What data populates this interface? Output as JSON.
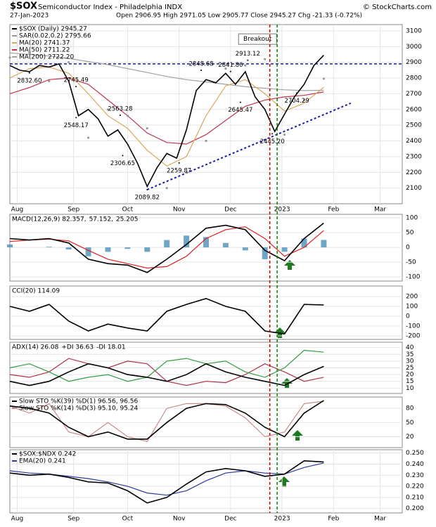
{
  "header": {
    "symbol": "$SOX",
    "name": "Semiconductor Index - Philadelphia INDX",
    "date": "27-Jan-2023",
    "ohlc": "Open 2906.95  High 2971.05  Low 2905.77  Close 2945.27  Chg -21.33 (-0.72%)",
    "source": "© StockCharts.com"
  },
  "chart_data": [
    {
      "type": "line",
      "legend_layout": "stacked",
      "xlim": [
        0,
        160
      ],
      "ylim": [
        2000,
        3140
      ],
      "xticks": [
        {
          "value": 3,
          "label": "Aug"
        },
        {
          "value": 26,
          "label": "Sep"
        },
        {
          "value": 48,
          "label": "Oct"
        },
        {
          "value": 69,
          "label": "Nov"
        },
        {
          "value": 90,
          "label": "Dec"
        },
        {
          "value": 111,
          "label": "2023"
        },
        {
          "value": 132,
          "label": "Feb"
        },
        {
          "value": 151,
          "label": "Mar"
        }
      ],
      "yticks": [
        2100,
        2200,
        2300,
        2400,
        2500,
        2600,
        2700,
        2800,
        2900,
        3000,
        3100
      ],
      "grid": true,
      "series": [
        {
          "name": "$SOX (Daily) 2945.27",
          "color": "#000000",
          "x": [
            0,
            4,
            8,
            12,
            16,
            20,
            24,
            28,
            32,
            36,
            40,
            44,
            48,
            52,
            56,
            60,
            64,
            68,
            72,
            76,
            80,
            84,
            88,
            92,
            96,
            100,
            104,
            108,
            112,
            116,
            120,
            124,
            128
          ],
          "values": [
            2880,
            2850,
            2840,
            2880,
            2870,
            2890,
            2780,
            2560,
            2600,
            2540,
            2430,
            2470,
            2380,
            2260,
            2110,
            2230,
            2320,
            2290,
            2470,
            2720,
            2790,
            2770,
            2830,
            2760,
            2840,
            2680,
            2600,
            2460,
            2570,
            2680,
            2760,
            2880,
            2945.27
          ]
        },
        {
          "name": "SAR(0.02,0.2) 2795.66",
          "color": "#999999",
          "kind": "dots",
          "x": [
            0,
            8,
            16,
            24,
            32,
            40,
            48,
            56,
            64,
            72,
            80,
            88,
            96,
            104,
            112,
            120,
            128
          ],
          "values": [
            2930,
            2960,
            2780,
            2900,
            2420,
            2600,
            2560,
            2480,
            2100,
            2200,
            2400,
            2860,
            2880,
            2920,
            2440,
            2660,
            2795.66
          ]
        },
        {
          "name": "MA(20) 2741.37",
          "color": "#d9a95b",
          "x": [
            0,
            8,
            16,
            24,
            32,
            40,
            48,
            56,
            64,
            72,
            80,
            88,
            96,
            104,
            112,
            120,
            128
          ],
          "values": [
            2800,
            2860,
            2870,
            2830,
            2700,
            2560,
            2480,
            2340,
            2240,
            2300,
            2560,
            2750,
            2790,
            2700,
            2590,
            2640,
            2741.37
          ]
        },
        {
          "name": "MA(50) 2711.22",
          "color": "#c0334d",
          "x": [
            0,
            8,
            16,
            24,
            32,
            40,
            48,
            56,
            64,
            72,
            80,
            88,
            96,
            104,
            112,
            120,
            128
          ],
          "values": [
            2700,
            2740,
            2790,
            2800,
            2760,
            2660,
            2560,
            2450,
            2390,
            2380,
            2440,
            2530,
            2620,
            2660,
            2680,
            2690,
            2711.22
          ]
        },
        {
          "name": "MA(200) 2722.20",
          "color": "#a0a0a0",
          "x": [
            0,
            8,
            16,
            24,
            32,
            40,
            48,
            56,
            64,
            72,
            80,
            88,
            96,
            104,
            112,
            120,
            128
          ],
          "values": [
            2960,
            2950,
            2940,
            2925,
            2905,
            2885,
            2860,
            2835,
            2810,
            2790,
            2775,
            2760,
            2745,
            2735,
            2725,
            2720,
            2722.2
          ]
        }
      ],
      "annotations": [
        {
          "text": "2832.60",
          "x": 8,
          "value": 2832.6,
          "position": "below"
        },
        {
          "text": "2745.49",
          "x": 27,
          "value": 2745.49,
          "position": "above"
        },
        {
          "text": "2548.17",
          "x": 27,
          "value": 2548.17,
          "position": "below"
        },
        {
          "text": "2563.28",
          "x": 45,
          "value": 2563.28,
          "position": "above"
        },
        {
          "text": "2306.65",
          "x": 46,
          "value": 2306.65,
          "position": "below"
        },
        {
          "text": "2089.82",
          "x": 56,
          "value": 2089.82,
          "position": "below"
        },
        {
          "text": "2259.87",
          "x": 69,
          "value": 2259.87,
          "position": "below"
        },
        {
          "text": "2848.68",
          "x": 78,
          "value": 2848.68,
          "position": "above"
        },
        {
          "text": "2841.86",
          "x": 90,
          "value": 2841.86,
          "position": "above"
        },
        {
          "text": "2913.12",
          "x": 97,
          "value": 2913.12,
          "position": "above"
        },
        {
          "text": "2645.47",
          "x": 94,
          "value": 2645.47,
          "position": "below"
        },
        {
          "text": "2445.20",
          "x": 107,
          "value": 2445.2,
          "position": "below"
        },
        {
          "text": "2704.29",
          "x": 117,
          "value": 2704.29,
          "position": "below"
        }
      ],
      "callout": {
        "text": "Breakout",
        "x": 101,
        "value": 3050
      },
      "hline": {
        "value": 2890,
        "color": "#1a1aa6"
      },
      "trendline": {
        "x": [
          56,
          139
        ],
        "values": [
          2089.82,
          2640
        ],
        "color": "#1a1aa6"
      },
      "events": [
        {
          "x": 106,
          "color": "#cc0000"
        },
        {
          "x": 109,
          "color": "#008800"
        }
      ]
    },
    {
      "type": "line",
      "legend_layout": "inline",
      "xlim": [
        0,
        160
      ],
      "ylim": [
        -114,
        112
      ],
      "yticks": [
        100,
        50,
        0,
        -50,
        -100
      ],
      "grid": true,
      "series": [
        {
          "name": "MACD(12,26,9) 82.357,",
          "color": "#000000",
          "x": [
            0,
            8,
            16,
            24,
            32,
            40,
            48,
            56,
            64,
            72,
            80,
            88,
            96,
            104,
            112,
            120,
            128
          ],
          "values": [
            30,
            25,
            30,
            15,
            -40,
            -55,
            -60,
            -85,
            -40,
            10,
            65,
            75,
            60,
            -10,
            -45,
            30,
            82.357
          ]
        },
        {
          "name": "57.152,",
          "color": "#e02020",
          "x": [
            0,
            8,
            16,
            24,
            32,
            40,
            48,
            56,
            64,
            72,
            80,
            88,
            96,
            104,
            112,
            120,
            128
          ],
          "values": [
            20,
            25,
            28,
            22,
            -10,
            -40,
            -55,
            -70,
            -65,
            -30,
            30,
            60,
            70,
            30,
            -30,
            0,
            57.152
          ]
        },
        {
          "name": "25.205",
          "color": "#4a90b8",
          "kind": "bar",
          "x": [
            0,
            8,
            16,
            24,
            32,
            40,
            48,
            56,
            64,
            72,
            80,
            88,
            96,
            104,
            112,
            120,
            128
          ],
          "values": [
            10,
            0,
            2,
            -7,
            -30,
            -15,
            -5,
            -15,
            25,
            40,
            35,
            15,
            -10,
            -40,
            -15,
            30,
            25.205
          ]
        }
      ]
    },
    {
      "type": "line",
      "legend_layout": "inline",
      "xlim": [
        0,
        160
      ],
      "ylim": [
        -236,
        307
      ],
      "yticks": [
        200,
        100,
        0,
        -100,
        -200
      ],
      "grid": true,
      "series": [
        {
          "name": "CCI(20) 114.09",
          "color": "#000000",
          "x": [
            0,
            8,
            16,
            24,
            32,
            40,
            48,
            56,
            64,
            72,
            80,
            88,
            96,
            104,
            112,
            120,
            128
          ],
          "values": [
            100,
            50,
            120,
            -50,
            -150,
            -80,
            -120,
            -150,
            50,
            120,
            180,
            100,
            50,
            -150,
            -180,
            120,
            114.09
          ]
        }
      ]
    },
    {
      "type": "line",
      "legend_layout": "inline",
      "xlim": [
        0,
        160
      ],
      "ylim": [
        6,
        44
      ],
      "yticks": [
        40,
        35,
        30,
        25,
        20,
        15,
        10
      ],
      "grid": true,
      "series": [
        {
          "name": "ADX(14) 26.08",
          "color": "#000000",
          "x": [
            0,
            8,
            16,
            24,
            32,
            40,
            48,
            56,
            64,
            72,
            80,
            88,
            96,
            104,
            112,
            120,
            128
          ],
          "values": [
            15,
            12,
            15,
            22,
            28,
            25,
            20,
            18,
            15,
            20,
            28,
            22,
            18,
            15,
            12,
            20,
            26.08
          ]
        },
        {
          "name": "+DI 36.63",
          "color": "#2e9e3e",
          "x": [
            0,
            8,
            16,
            24,
            32,
            40,
            48,
            56,
            64,
            72,
            80,
            88,
            96,
            104,
            112,
            120,
            128
          ],
          "values": [
            25,
            28,
            22,
            15,
            18,
            20,
            15,
            18,
            30,
            32,
            28,
            30,
            22,
            18,
            25,
            38,
            36.63
          ]
        },
        {
          "name": "-DI 18.01",
          "color": "#b0304a",
          "x": [
            0,
            8,
            16,
            24,
            32,
            40,
            48,
            56,
            64,
            72,
            80,
            88,
            96,
            104,
            112,
            120,
            128
          ],
          "values": [
            20,
            18,
            22,
            32,
            28,
            25,
            30,
            28,
            15,
            12,
            15,
            14,
            20,
            28,
            22,
            15,
            18.01
          ]
        }
      ]
    },
    {
      "type": "line",
      "legend_layout": "stacked",
      "xlim": [
        0,
        160
      ],
      "ylim": [
        -3,
        104
      ],
      "yticks": [
        80,
        50,
        20
      ],
      "grid": true,
      "series": [
        {
          "name": "Slow STO %K(39) %D(1) 96.56, 96.56",
          "color": "#000000",
          "x": [
            0,
            8,
            16,
            24,
            32,
            40,
            48,
            56,
            64,
            72,
            80,
            88,
            96,
            104,
            112,
            120,
            128
          ],
          "values": [
            85,
            80,
            70,
            40,
            20,
            30,
            15,
            15,
            50,
            80,
            90,
            88,
            70,
            40,
            20,
            70,
            96.56
          ]
        },
        {
          "name": "Slow STO %K(14) %D(3) 95.10, 95.24",
          "color": "#c98a8a",
          "x": [
            0,
            8,
            16,
            24,
            32,
            40,
            48,
            56,
            64,
            72,
            80,
            88,
            96,
            104,
            112,
            120,
            128
          ],
          "values": [
            85,
            70,
            90,
            30,
            20,
            50,
            20,
            10,
            80,
            90,
            90,
            85,
            60,
            20,
            30,
            90,
            95.1
          ]
        }
      ]
    },
    {
      "type": "line",
      "legend_layout": "stacked",
      "xlim": [
        0,
        160
      ],
      "ylim": [
        0.196,
        0.253
      ],
      "grid": true,
      "xticks": [
        {
          "value": 3,
          "label": "Aug"
        },
        {
          "value": 26,
          "label": "Sep"
        },
        {
          "value": 48,
          "label": "Oct"
        },
        {
          "value": 69,
          "label": "Nov"
        },
        {
          "value": 90,
          "label": "Dec"
        },
        {
          "value": 111,
          "label": "2023"
        },
        {
          "value": 132,
          "label": "Feb"
        },
        {
          "value": 151,
          "label": "Mar"
        }
      ],
      "yticks": [
        {
          "value": 0.25,
          "label": "0.250"
        },
        {
          "value": 0.24,
          "label": "0.240"
        },
        {
          "value": 0.23,
          "label": "0.230"
        },
        {
          "value": 0.22,
          "label": "0.220"
        },
        {
          "value": 0.21,
          "label": "0.210"
        },
        {
          "value": 0.2,
          "label": "0.200"
        }
      ],
      "series": [
        {
          "name": "$SOX:$NDX 0.242",
          "color": "#000000",
          "x": [
            0,
            8,
            16,
            24,
            32,
            40,
            48,
            56,
            64,
            72,
            80,
            88,
            96,
            104,
            112,
            120,
            128
          ],
          "values": [
            0.232,
            0.23,
            0.231,
            0.228,
            0.224,
            0.223,
            0.216,
            0.205,
            0.21,
            0.222,
            0.233,
            0.236,
            0.234,
            0.229,
            0.231,
            0.243,
            0.242
          ]
        },
        {
          "name": "EMA(20) 0.241",
          "color": "#2a3a9e",
          "x": [
            0,
            8,
            16,
            24,
            32,
            40,
            48,
            56,
            64,
            72,
            80,
            88,
            96,
            104,
            112,
            120,
            128
          ],
          "values": [
            0.234,
            0.232,
            0.231,
            0.229,
            0.227,
            0.224,
            0.22,
            0.214,
            0.212,
            0.216,
            0.225,
            0.232,
            0.234,
            0.232,
            0.231,
            0.237,
            0.241
          ]
        }
      ]
    }
  ]
}
